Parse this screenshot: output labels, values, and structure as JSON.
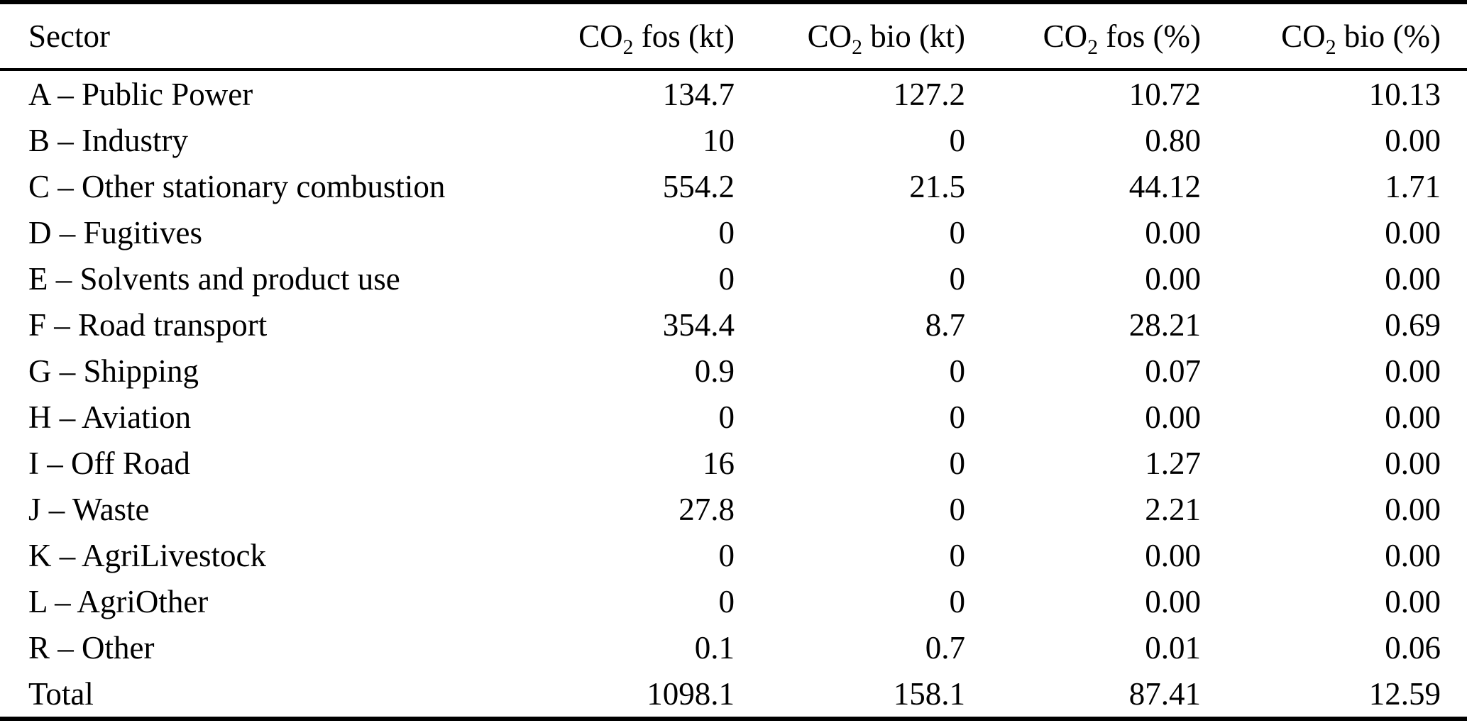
{
  "table": {
    "columns": [
      {
        "base": "Sector",
        "sub": "",
        "rest": ""
      },
      {
        "base": "CO",
        "sub": "2",
        "rest": " fos (kt)"
      },
      {
        "base": "CO",
        "sub": "2",
        "rest": " bio (kt)"
      },
      {
        "base": "CO",
        "sub": "2",
        "rest": " fos (%)"
      },
      {
        "base": "CO",
        "sub": "2",
        "rest": " bio (%)"
      }
    ],
    "rows": [
      {
        "sector": "A – Public Power",
        "fos_kt": "134.7",
        "bio_kt": "127.2",
        "fos_pct": "10.72",
        "bio_pct": "10.13"
      },
      {
        "sector": "B – Industry",
        "fos_kt": "10",
        "bio_kt": "0",
        "fos_pct": "0.80",
        "bio_pct": "0.00"
      },
      {
        "sector": "C – Other stationary combustion",
        "fos_kt": "554.2",
        "bio_kt": "21.5",
        "fos_pct": "44.12",
        "bio_pct": "1.71"
      },
      {
        "sector": "D – Fugitives",
        "fos_kt": "0",
        "bio_kt": "0",
        "fos_pct": "0.00",
        "bio_pct": "0.00"
      },
      {
        "sector": "E – Solvents and product use",
        "fos_kt": "0",
        "bio_kt": "0",
        "fos_pct": "0.00",
        "bio_pct": "0.00"
      },
      {
        "sector": "F – Road transport",
        "fos_kt": "354.4",
        "bio_kt": "8.7",
        "fos_pct": "28.21",
        "bio_pct": "0.69"
      },
      {
        "sector": "G – Shipping",
        "fos_kt": "0.9",
        "bio_kt": "0",
        "fos_pct": "0.07",
        "bio_pct": "0.00"
      },
      {
        "sector": "H – Aviation",
        "fos_kt": "0",
        "bio_kt": "0",
        "fos_pct": "0.00",
        "bio_pct": "0.00"
      },
      {
        "sector": "I – Off Road",
        "fos_kt": "16",
        "bio_kt": "0",
        "fos_pct": "1.27",
        "bio_pct": "0.00"
      },
      {
        "sector": "J – Waste",
        "fos_kt": "27.8",
        "bio_kt": "0",
        "fos_pct": "2.21",
        "bio_pct": "0.00"
      },
      {
        "sector": "K – AgriLivestock",
        "fos_kt": "0",
        "bio_kt": "0",
        "fos_pct": "0.00",
        "bio_pct": "0.00"
      },
      {
        "sector": "L – AgriOther",
        "fos_kt": "0",
        "bio_kt": "0",
        "fos_pct": "0.00",
        "bio_pct": "0.00"
      },
      {
        "sector": "R – Other",
        "fos_kt": "0.1",
        "bio_kt": "0.7",
        "fos_pct": "0.01",
        "bio_pct": "0.06"
      },
      {
        "sector": "Total",
        "fos_kt": "1098.1",
        "bio_kt": "158.1",
        "fos_pct": "87.41",
        "bio_pct": "12.59"
      }
    ]
  }
}
